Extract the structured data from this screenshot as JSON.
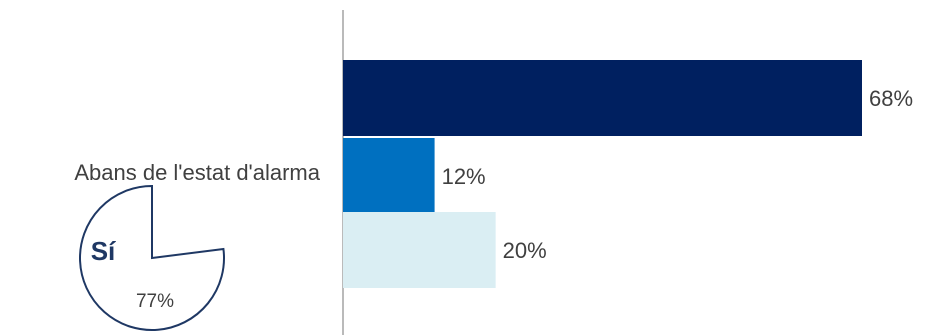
{
  "chart_data": {
    "type": "bar",
    "orientation": "horizontal",
    "categories": [
      "Abans de l'estat d'alarma"
    ],
    "series": [
      {
        "values": [
          68
        ],
        "color": "#002060"
      },
      {
        "values": [
          12
        ],
        "color": "#0070C0"
      },
      {
        "values": [
          20
        ],
        "color": "#DAEEF3"
      }
    ],
    "value_labels": [
      "68%",
      "12%",
      "20%"
    ],
    "xlim": [
      0,
      100
    ],
    "grid": false,
    "legend": "none"
  },
  "badge": {
    "label": "Sí",
    "value": "77%",
    "fraction": 0.77,
    "color": "#1F3864"
  }
}
